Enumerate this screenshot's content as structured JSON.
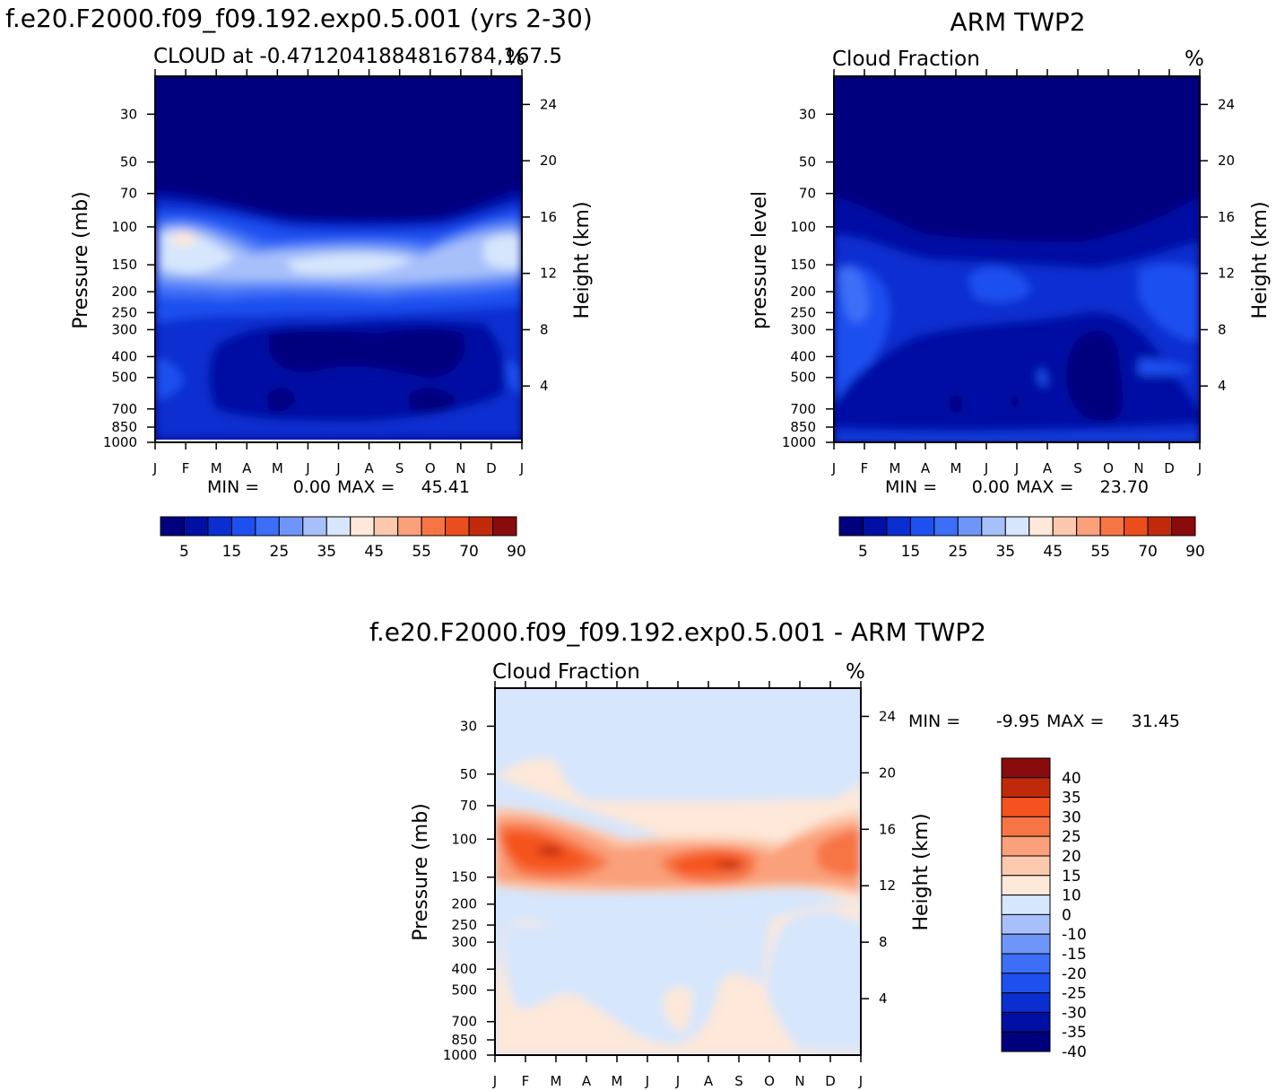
{
  "chart_data": [
    {
      "type": "heatmap",
      "panel_title": "f.e20.F2000.f09_f09.192.exp0.5.001 (yrs 2-30)",
      "subtitle_left": "CLOUD at -0.4712041884816784,167.5",
      "subtitle_right": "%",
      "ylabel_left": "Pressure (mb)",
      "ylabel_right": "Height (km)",
      "x_ticks": [
        "J",
        "F",
        "M",
        "A",
        "M",
        "J",
        "J",
        "A",
        "S",
        "O",
        "N",
        "D",
        "J"
      ],
      "pressure_ticks": [
        "30",
        "50",
        "70",
        "100",
        "150",
        "200",
        "250",
        "300",
        "400",
        "500",
        "700",
        "850",
        "1000"
      ],
      "height_ticks": [
        "24",
        "20",
        "16",
        "12",
        "8",
        "4"
      ],
      "stats": {
        "min_label": "MIN =",
        "min": "0.00",
        "max_label": "MAX =",
        "max": "45.41"
      },
      "colorbar": {
        "orientation": "horizontal",
        "labels": [
          "5",
          "15",
          "25",
          "35",
          "45",
          "55",
          "70",
          "90"
        ]
      }
    },
    {
      "type": "heatmap",
      "panel_title": "ARM TWP2",
      "subtitle_left": "Cloud Fraction",
      "subtitle_right": "%",
      "ylabel_left": "pressure level",
      "ylabel_right": "Height (km)",
      "x_ticks": [
        "J",
        "F",
        "M",
        "A",
        "M",
        "J",
        "J",
        "A",
        "S",
        "O",
        "N",
        "D",
        "J"
      ],
      "pressure_ticks": [
        "30",
        "50",
        "70",
        "100",
        "150",
        "200",
        "250",
        "300",
        "400",
        "500",
        "700",
        "850",
        "1000"
      ],
      "height_ticks": [
        "24",
        "20",
        "16",
        "12",
        "8",
        "4"
      ],
      "stats": {
        "min_label": "MIN =",
        "min": "0.00",
        "max_label": "MAX =",
        "max": "23.70"
      },
      "colorbar": {
        "orientation": "horizontal",
        "labels": [
          "5",
          "15",
          "25",
          "35",
          "45",
          "55",
          "70",
          "90"
        ]
      }
    },
    {
      "type": "heatmap",
      "panel_title": "f.e20.F2000.f09_f09.192.exp0.5.001 - ARM TWP2",
      "subtitle_left": "Cloud Fraction",
      "subtitle_right": "%",
      "ylabel_left": "Pressure (mb)",
      "ylabel_right": "Height (km)",
      "x_ticks": [
        "J",
        "F",
        "M",
        "A",
        "M",
        "J",
        "J",
        "A",
        "S",
        "O",
        "N",
        "D",
        "J"
      ],
      "pressure_ticks": [
        "30",
        "50",
        "70",
        "100",
        "150",
        "200",
        "250",
        "300",
        "400",
        "500",
        "700",
        "850",
        "1000"
      ],
      "height_ticks": [
        "24",
        "20",
        "16",
        "12",
        "8",
        "4"
      ],
      "stats": {
        "min_label": "MIN =",
        "min": "-9.95",
        "max_label": "MAX =",
        "max": "31.45"
      },
      "colorbar": {
        "orientation": "vertical",
        "labels": [
          "40",
          "35",
          "30",
          "25",
          "20",
          "15",
          "10",
          "0",
          "-10",
          "-15",
          "-20",
          "-25",
          "-30",
          "-35",
          "-40"
        ]
      }
    }
  ],
  "colors": {
    "abs_scale": [
      "#00007f",
      "#0010a4",
      "#0a2ed0",
      "#1e50f0",
      "#3c6ef6",
      "#6e96f8",
      "#a8c0fa",
      "#d6e6fc",
      "#fde8d9",
      "#fcc9ae",
      "#faa07a",
      "#f77545",
      "#eb4e1c",
      "#c02a0a",
      "#8a0b0b"
    ],
    "diff_scale": [
      "#00007f",
      "#0010a4",
      "#0a2ed0",
      "#1e50f0",
      "#3c6ef6",
      "#6e96f8",
      "#a8c0fa",
      "#d6e6fc",
      "#fde8d9",
      "#fcc9ae",
      "#faa07a",
      "#f77545",
      "#f5521f",
      "#c02a0a",
      "#8a0b0b"
    ]
  }
}
